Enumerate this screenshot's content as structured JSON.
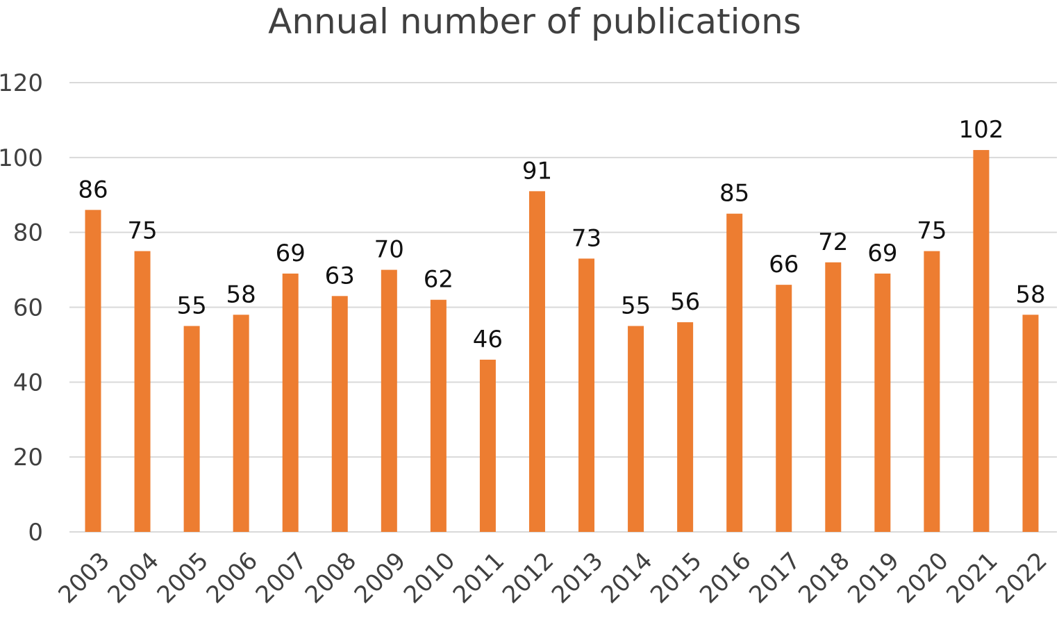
{
  "chart_data": {
    "type": "bar",
    "title": "Annual number of publications",
    "xlabel": "",
    "ylabel": "",
    "categories": [
      "2003",
      "2004",
      "2005",
      "2006",
      "2007",
      "2008",
      "2009",
      "2010",
      "2011",
      "2012",
      "2013",
      "2014",
      "2015",
      "2016",
      "2017",
      "2018",
      "2019",
      "2020",
      "2021",
      "2022"
    ],
    "values": [
      86,
      75,
      55,
      58,
      69,
      63,
      70,
      62,
      46,
      91,
      73,
      55,
      56,
      85,
      66,
      72,
      69,
      75,
      102,
      58
    ],
    "ylim": [
      0,
      120
    ],
    "yticks": [
      0,
      20,
      40,
      60,
      80,
      100,
      120
    ],
    "grid": true,
    "legend": "none",
    "colors": {
      "bar": "#ed7d31",
      "grid": "#d9d9d9",
      "text": "#404040",
      "data_label": "#111111"
    }
  }
}
